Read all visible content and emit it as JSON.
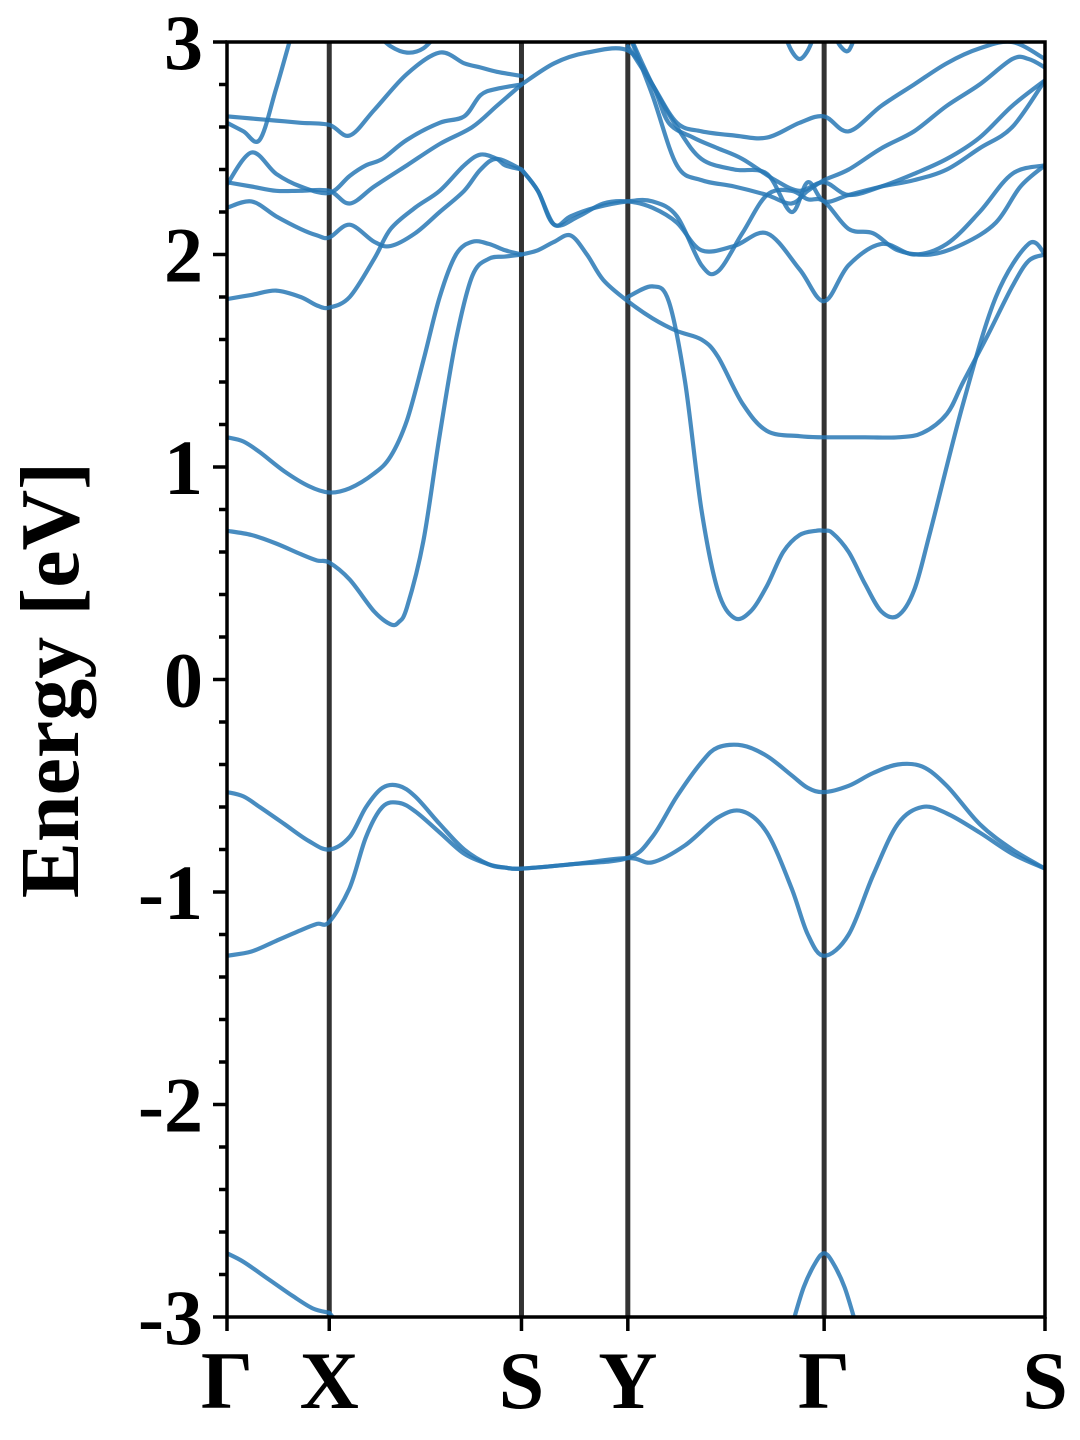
{
  "chart_data": {
    "type": "line",
    "title": "",
    "ylabel": "Energy [eV]",
    "xlabel": "",
    "ylim": [
      -3,
      3
    ],
    "yticks": [
      "-3",
      "-2",
      "-1",
      "0",
      "1",
      "2",
      "3"
    ],
    "y_minor_step": 0.2,
    "grid": false,
    "legend": "none",
    "band_color": "#2878b5",
    "kline_color": "#333333",
    "kpath_labels": [
      "Γ",
      "X",
      "S",
      "Y",
      "Γ",
      "S"
    ],
    "kpath_positions": [
      0,
      0.125,
      0.36,
      0.49,
      0.73,
      1.0
    ],
    "bands": [
      {
        "x": [
          0,
          0.02,
          0.05,
          0.08,
          0.105,
          0.125
        ],
        "y": [
          -2.7,
          -2.74,
          -2.82,
          -2.9,
          -2.96,
          -2.98
        ]
      },
      {
        "x": [
          0.125,
          0.14
        ],
        "y": [
          -2.98,
          -3.05
        ]
      },
      {
        "x": [
          0.69,
          0.705,
          0.72,
          0.73,
          0.74,
          0.755,
          0.77
        ],
        "y": [
          -3.05,
          -2.86,
          -2.74,
          -2.7,
          -2.74,
          -2.86,
          -3.05
        ]
      },
      {
        "x": [
          0,
          0.03,
          0.06,
          0.09,
          0.11,
          0.125,
          0.15,
          0.17,
          0.19,
          0.21,
          0.23,
          0.26,
          0.29,
          0.32,
          0.34,
          0.36,
          0.42,
          0.49,
          0.52,
          0.56,
          0.6,
          0.63,
          0.66,
          0.69,
          0.71,
          0.73,
          0.76,
          0.79,
          0.82,
          0.85,
          0.88,
          0.92,
          0.96,
          1.0
        ],
        "y": [
          -1.3,
          -1.28,
          -1.23,
          -1.18,
          -1.15,
          -1.14,
          -0.98,
          -0.74,
          -0.6,
          -0.58,
          -0.62,
          -0.72,
          -0.82,
          -0.87,
          -0.885,
          -0.89,
          -0.87,
          -0.84,
          -0.86,
          -0.78,
          -0.65,
          -0.62,
          -0.72,
          -0.98,
          -1.2,
          -1.3,
          -1.2,
          -0.92,
          -0.68,
          -0.6,
          -0.63,
          -0.72,
          -0.82,
          -0.89
        ]
      },
      {
        "x": [
          0,
          0.02,
          0.04,
          0.07,
          0.1,
          0.125,
          0.15,
          0.17,
          0.19,
          0.21,
          0.23,
          0.26,
          0.29,
          0.32,
          0.34,
          0.36,
          0.42,
          0.49,
          0.52,
          0.55,
          0.58,
          0.6,
          0.63,
          0.66,
          0.69,
          0.71,
          0.73,
          0.76,
          0.79,
          0.82,
          0.85,
          0.88,
          0.92,
          0.96,
          1.0
        ],
        "y": [
          -0.53,
          -0.55,
          -0.6,
          -0.68,
          -0.76,
          -0.8,
          -0.74,
          -0.6,
          -0.51,
          -0.5,
          -0.55,
          -0.68,
          -0.8,
          -0.87,
          -0.885,
          -0.89,
          -0.87,
          -0.84,
          -0.74,
          -0.55,
          -0.39,
          -0.32,
          -0.31,
          -0.36,
          -0.45,
          -0.51,
          -0.53,
          -0.5,
          -0.44,
          -0.4,
          -0.41,
          -0.5,
          -0.68,
          -0.8,
          -0.89
        ]
      },
      {
        "x": [
          0,
          0.03,
          0.06,
          0.09,
          0.11,
          0.125,
          0.15,
          0.18,
          0.2,
          0.21,
          0.22,
          0.24,
          0.26,
          0.28,
          0.3,
          0.32,
          0.34,
          0.36
        ],
        "y": [
          0.7,
          0.68,
          0.64,
          0.59,
          0.56,
          0.55,
          0.47,
          0.32,
          0.26,
          0.27,
          0.34,
          0.65,
          1.15,
          1.6,
          1.9,
          1.98,
          1.99,
          2.0
        ]
      },
      {
        "x": [
          0.49,
          0.52,
          0.54,
          0.56,
          0.58,
          0.6,
          0.62,
          0.64,
          0.66,
          0.68,
          0.7,
          0.72,
          0.73,
          0.74,
          0.76,
          0.78,
          0.8,
          0.82,
          0.84,
          0.86,
          0.9,
          0.94,
          0.98,
          1.0
        ],
        "y": [
          1.8,
          1.85,
          1.78,
          1.4,
          0.8,
          0.42,
          0.29,
          0.32,
          0.44,
          0.6,
          0.68,
          0.7,
          0.7,
          0.69,
          0.6,
          0.45,
          0.32,
          0.3,
          0.42,
          0.7,
          1.3,
          1.8,
          2.05,
          2.0
        ]
      },
      {
        "x": [
          0,
          0.02,
          0.04,
          0.07,
          0.1,
          0.125,
          0.15,
          0.18,
          0.2,
          0.22,
          0.24,
          0.26,
          0.28,
          0.3,
          0.32,
          0.34,
          0.36
        ],
        "y": [
          1.14,
          1.12,
          1.07,
          0.98,
          0.91,
          0.88,
          0.9,
          0.97,
          1.05,
          1.22,
          1.5,
          1.8,
          2.0,
          2.06,
          2.05,
          2.02,
          2.0
        ]
      },
      {
        "x": [
          0.36,
          0.38,
          0.4,
          0.42,
          0.44,
          0.46,
          0.49,
          0.52,
          0.55,
          0.58,
          0.6,
          0.63,
          0.66,
          0.7,
          0.73,
          0.78,
          0.82,
          0.85,
          0.88,
          0.9,
          0.93,
          0.96,
          0.98,
          1.0
        ],
        "y": [
          2.0,
          2.02,
          2.06,
          2.09,
          2.0,
          1.88,
          1.78,
          1.7,
          1.64,
          1.6,
          1.52,
          1.3,
          1.17,
          1.145,
          1.14,
          1.14,
          1.14,
          1.16,
          1.25,
          1.4,
          1.62,
          1.85,
          1.97,
          2.0
        ]
      },
      {
        "x": [
          0,
          0.03,
          0.06,
          0.09,
          0.11,
          0.125,
          0.15,
          0.18,
          0.2,
          0.23,
          0.26,
          0.29,
          0.31,
          0.33,
          0.34,
          0.36
        ],
        "y": [
          1.79,
          1.81,
          1.83,
          1.8,
          1.76,
          1.75,
          1.8,
          1.98,
          2.12,
          2.22,
          2.3,
          2.42,
          2.47,
          2.45,
          2.42,
          2.4
        ]
      },
      {
        "x": [
          0.36,
          0.38,
          0.4,
          0.42,
          0.45,
          0.49,
          0.52,
          0.55,
          0.58,
          0.6,
          0.63,
          0.66,
          0.69,
          0.71,
          0.73,
          0.76,
          0.79,
          0.82,
          0.86,
          0.9,
          0.94,
          0.97,
          1.0
        ],
        "y": [
          2.4,
          2.3,
          2.14,
          2.18,
          2.22,
          2.25,
          2.25,
          2.18,
          1.95,
          1.92,
          2.1,
          2.28,
          2.3,
          2.26,
          2.25,
          2.12,
          2.1,
          2.02,
          2.0,
          2.05,
          2.15,
          2.32,
          2.42
        ]
      },
      {
        "x": [
          0,
          0.03,
          0.06,
          0.09,
          0.11,
          0.125,
          0.15,
          0.18,
          0.2,
          0.23,
          0.26,
          0.29,
          0.31,
          0.33,
          0.36
        ],
        "y": [
          2.22,
          2.25,
          2.18,
          2.12,
          2.09,
          2.08,
          2.14,
          2.06,
          2.04,
          2.1,
          2.2,
          2.3,
          2.4,
          2.45,
          2.4
        ]
      },
      {
        "x": [
          0.36,
          0.38,
          0.4,
          0.43,
          0.46,
          0.49,
          0.52,
          0.55,
          0.58,
          0.62,
          0.66,
          0.7,
          0.73,
          0.76,
          0.8,
          0.84,
          0.88,
          0.92,
          0.96,
          1.0
        ],
        "y": [
          2.4,
          2.3,
          2.14,
          2.18,
          2.24,
          2.25,
          2.22,
          2.15,
          2.02,
          2.04,
          2.1,
          1.93,
          1.78,
          1.95,
          2.05,
          2.0,
          2.05,
          2.2,
          2.38,
          2.42
        ]
      },
      {
        "x": [
          0,
          0.03,
          0.06,
          0.09,
          0.125,
          0.15,
          0.18,
          0.22,
          0.26,
          0.3,
          0.33,
          0.36
        ],
        "y": [
          2.34,
          2.32,
          2.3,
          2.3,
          2.3,
          2.24,
          2.32,
          2.42,
          2.52,
          2.6,
          2.7,
          2.8
        ]
      },
      {
        "x": [
          0,
          0.03,
          0.06,
          0.09,
          0.125,
          0.15,
          0.17,
          0.19,
          0.22,
          0.26,
          0.29,
          0.31,
          0.33,
          0.36
        ],
        "y": [
          2.33,
          2.48,
          2.38,
          2.32,
          2.29,
          2.37,
          2.42,
          2.45,
          2.54,
          2.62,
          2.65,
          2.75,
          2.78,
          2.8
        ]
      },
      {
        "x": [
          0.36,
          0.4,
          0.44,
          0.49,
          0.52,
          0.54,
          0.57,
          0.6,
          0.63,
          0.67,
          0.7,
          0.73,
          0.76,
          0.8,
          0.84,
          0.88,
          0.92,
          0.96,
          1.0
        ],
        "y": [
          2.8,
          2.9,
          2.95,
          2.96,
          2.8,
          2.62,
          2.55,
          2.5,
          2.45,
          2.35,
          2.3,
          2.34,
          2.28,
          2.32,
          2.38,
          2.45,
          2.55,
          2.7,
          2.82
        ]
      },
      {
        "x": [
          0,
          0.03,
          0.06,
          0.09,
          0.125,
          0.15,
          0.18,
          0.22,
          0.26,
          0.29,
          0.31,
          0.33,
          0.36
        ],
        "y": [
          2.65,
          2.64,
          2.63,
          2.62,
          2.61,
          2.56,
          2.68,
          2.85,
          2.95,
          2.9,
          2.88,
          2.86,
          2.84
        ]
      },
      {
        "x": [
          0,
          0.02,
          0.04,
          0.06,
          0.08
        ],
        "y": [
          2.62,
          2.58,
          2.54,
          2.78,
          3.05
        ]
      },
      {
        "x": [
          0.49,
          0.52,
          0.55,
          0.58,
          0.62,
          0.66,
          0.7,
          0.73,
          0.76,
          0.8,
          0.84,
          0.88,
          0.92,
          0.96,
          1.0
        ],
        "y": [
          2.98,
          2.8,
          2.62,
          2.58,
          2.56,
          2.55,
          2.62,
          2.65,
          2.58,
          2.7,
          2.8,
          2.9,
          2.97,
          3.0,
          2.92
        ]
      },
      {
        "x": [
          0.49,
          0.52,
          0.55,
          0.58,
          0.62,
          0.66,
          0.69,
          0.71,
          0.73,
          0.76,
          0.8,
          0.84,
          0.88,
          0.92,
          0.96,
          0.98,
          1.0
        ],
        "y": [
          3.05,
          2.75,
          2.42,
          2.35,
          2.32,
          2.28,
          2.24,
          2.3,
          2.35,
          2.4,
          2.5,
          2.58,
          2.7,
          2.8,
          2.92,
          2.92,
          2.88
        ]
      },
      {
        "x": [
          0.49,
          0.52,
          0.55,
          0.58,
          0.62,
          0.66,
          0.69,
          0.71,
          0.73,
          0.76,
          0.8,
          0.84,
          0.88,
          0.92,
          0.96,
          1.0
        ],
        "y": [
          3.05,
          2.8,
          2.6,
          2.45,
          2.4,
          2.38,
          2.2,
          2.34,
          2.25,
          2.28,
          2.32,
          2.35,
          2.4,
          2.5,
          2.6,
          2.82
        ]
      },
      {
        "x": [
          0.18,
          0.2,
          0.22,
          0.24,
          0.26
        ],
        "y": [
          3.05,
          2.98,
          2.95,
          2.97,
          3.05
        ]
      },
      {
        "x": [
          0.68,
          0.69,
          0.7,
          0.71,
          0.72
        ],
        "y": [
          3.05,
          2.96,
          2.92,
          2.96,
          3.05
        ]
      },
      {
        "x": [
          0.74,
          0.75,
          0.76,
          0.77
        ],
        "y": [
          3.05,
          2.98,
          2.96,
          3.05
        ]
      }
    ]
  }
}
